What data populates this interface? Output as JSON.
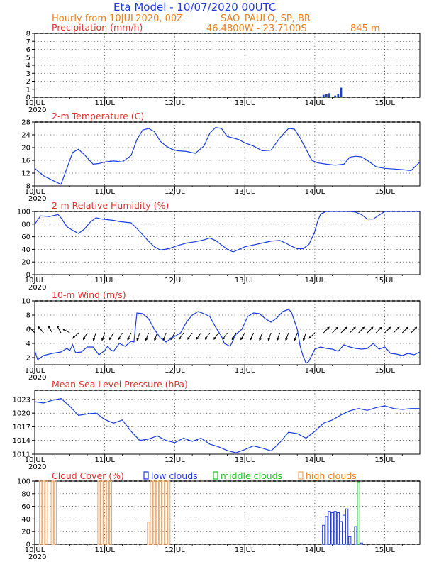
{
  "header": {
    "title": "Eta Model - 10/07/2020 00UTC",
    "line2_left": "Hourly from 10JUL2020, 00Z",
    "line2_right": "SAO_PAULO, SP, BR",
    "coords": "46.4800W - 23.7100S",
    "elevation": "845  m"
  },
  "colors": {
    "line": "#1a3be0",
    "wind_arrows": "#000000",
    "low_clouds": "#1f3bd6",
    "middle_clouds": "#22c122",
    "high_clouds": "#f4a460",
    "title_red": "#e0302c"
  },
  "x_axis": {
    "tick_labels": [
      "10JUL",
      "11JUL",
      "12JUL",
      "13JUL",
      "14JUL",
      "15JUL"
    ],
    "tick_hours": [
      0,
      24,
      48,
      72,
      96,
      120
    ],
    "year": "2020",
    "range_hours": [
      0,
      132
    ]
  },
  "panels": {
    "precip": {
      "title": "Precipitation (mm/h)"
    },
    "temp": {
      "title": "2-m Temperature (C)"
    },
    "rh": {
      "title": "2-m Relative Humidity (%)"
    },
    "wind": {
      "title": "10-m Wind (m/s)"
    },
    "mslp": {
      "title": "Mean Sea Level Pressure (hPa)"
    },
    "cloud": {
      "title": "Cloud Cover (%)",
      "legend_low": "low clouds",
      "legend_mid": "middle clouds",
      "legend_high": "high clouds"
    }
  },
  "chart_data": [
    {
      "id": "precip",
      "type": "bar",
      "title": "Precipitation (mm/h)",
      "ylim": [
        0,
        8
      ],
      "yticks": [
        0,
        1,
        2,
        3,
        4,
        5,
        6,
        7,
        8
      ],
      "x_hours": [
        98,
        99,
        100,
        101,
        102,
        103,
        104,
        105
      ],
      "values": [
        0.1,
        0.3,
        0.4,
        0.5,
        0.05,
        0.2,
        0.4,
        1.2
      ]
    },
    {
      "id": "temp",
      "type": "line",
      "title": "2-m Temperature (C)",
      "ylim": [
        8,
        28
      ],
      "yticks": [
        8,
        12,
        16,
        20,
        24,
        28
      ],
      "x_hours": [
        0,
        3,
        6,
        9,
        11,
        13,
        15,
        17,
        20,
        22,
        24,
        27,
        30,
        33,
        35,
        37,
        39,
        41,
        43,
        45,
        47,
        49,
        52,
        55,
        58,
        60,
        62,
        64,
        66,
        68,
        70,
        72,
        75,
        78,
        81,
        84,
        87,
        89,
        91,
        93,
        95,
        97,
        100,
        103,
        106,
        108,
        110,
        112,
        114,
        117,
        120,
        123,
        126,
        129,
        132
      ],
      "values": [
        13.5,
        11.2,
        9.8,
        8.5,
        13.5,
        18.5,
        19.5,
        17.8,
        14.8,
        15.0,
        15.5,
        15.8,
        15.5,
        17.5,
        22.5,
        25.5,
        26.0,
        25.0,
        22.0,
        20.5,
        19.5,
        19.0,
        18.8,
        18.2,
        20.5,
        24.5,
        26.3,
        26.0,
        23.5,
        23.0,
        22.5,
        21.5,
        20.5,
        19.0,
        19.2,
        23.0,
        26.0,
        25.8,
        23.0,
        19.5,
        16.0,
        15.2,
        14.8,
        14.5,
        14.8,
        17.0,
        17.3,
        17.1,
        16.0,
        14.0,
        13.5,
        13.3,
        13.1,
        12.8,
        15.5
      ]
    },
    {
      "id": "rh",
      "type": "line",
      "title": "2-m Relative Humidity (%)",
      "ylim": [
        0,
        100
      ],
      "yticks": [
        0,
        20,
        40,
        60,
        80,
        100
      ],
      "x_hours": [
        0,
        2,
        5,
        8,
        9,
        11,
        13,
        15,
        17,
        19,
        21,
        23,
        25,
        27,
        29,
        31,
        33,
        35,
        37,
        39,
        41,
        43,
        46,
        49,
        52,
        55,
        58,
        60,
        62,
        64,
        66,
        68,
        70,
        72,
        75,
        78,
        81,
        84,
        86,
        88,
        90,
        92,
        94,
        96,
        97,
        98,
        100,
        103,
        106,
        108,
        110,
        112,
        114,
        116,
        118,
        120,
        124,
        128,
        132
      ],
      "values": [
        80,
        93,
        92,
        95,
        90,
        76,
        70,
        65,
        72,
        83,
        90,
        88,
        87,
        86,
        84,
        83,
        82,
        73,
        63,
        53,
        44,
        39,
        41,
        46,
        50,
        52,
        55,
        58,
        54,
        47,
        40,
        36,
        40,
        44,
        47,
        50,
        53,
        54,
        50,
        45,
        41,
        41,
        48,
        68,
        85,
        96,
        100,
        100,
        100,
        100,
        99,
        95,
        88,
        88,
        94,
        100,
        100,
        100,
        100
      ]
    },
    {
      "id": "wind",
      "type": "line",
      "title": "10-m Wind (m/s)",
      "ylim": [
        1,
        10
      ],
      "yticks": [
        2,
        4,
        6,
        8,
        10
      ],
      "x_hours": [
        0,
        1,
        3,
        6,
        9,
        11,
        12,
        13,
        14,
        16,
        18,
        20,
        22,
        24,
        25,
        26,
        27,
        29,
        31,
        33,
        34,
        35,
        37,
        39,
        41,
        43,
        45,
        47,
        48,
        50,
        52,
        54,
        56,
        58,
        60,
        62,
        64,
        65,
        67,
        69,
        71,
        73,
        75,
        77,
        79,
        81,
        83,
        85,
        87,
        88,
        90,
        91,
        92,
        93,
        94,
        96,
        98,
        100,
        102,
        104,
        106,
        108,
        110,
        112,
        114,
        116,
        118,
        120,
        122,
        124,
        126,
        128,
        130,
        132
      ],
      "values": [
        3.0,
        1.7,
        2.3,
        2.6,
        2.8,
        3.3,
        3.0,
        3.8,
        2.7,
        2.8,
        3.5,
        3.5,
        2.4,
        3.0,
        3.6,
        3.1,
        2.9,
        4.0,
        3.6,
        4.3,
        4.2,
        8.3,
        8.2,
        7.5,
        6.0,
        4.8,
        4.2,
        4.8,
        5.0,
        5.5,
        7.0,
        8.0,
        8.5,
        8.2,
        7.8,
        6.3,
        5.0,
        4.0,
        3.6,
        5.3,
        6.0,
        7.8,
        8.3,
        8.2,
        7.5,
        7.0,
        7.6,
        8.5,
        8.8,
        8.4,
        6.0,
        3.6,
        2.2,
        1.2,
        1.5,
        3.2,
        3.5,
        3.3,
        3.2,
        2.9,
        3.8,
        3.5,
        3.3,
        3.2,
        3.3,
        4.0,
        3.2,
        3.5,
        2.6,
        2.5,
        2.3,
        2.6,
        2.4,
        2.8
      ],
      "arrows": {
        "x_hours": [
          0,
          3,
          6,
          9,
          12,
          15,
          18,
          21,
          24,
          27,
          30,
          33,
          36,
          39,
          42,
          45,
          48,
          51,
          54,
          57,
          60,
          63,
          66,
          69,
          72,
          75,
          78,
          81,
          84,
          87,
          90,
          93,
          96,
          99,
          102,
          105,
          108,
          111,
          114,
          117,
          120,
          123,
          126,
          129
        ],
        "direction_deg": [
          315,
          320,
          330,
          330,
          300,
          225,
          210,
          200,
          200,
          210,
          210,
          205,
          200,
          200,
          200,
          200,
          210,
          215,
          215,
          215,
          215,
          215,
          215,
          210,
          210,
          205,
          200,
          200,
          200,
          200,
          200,
          200,
          225,
          45,
          45,
          45,
          45,
          45,
          45,
          45,
          45,
          45,
          45,
          45
        ]
      }
    },
    {
      "id": "mslp",
      "type": "line",
      "title": "Mean Sea Level Pressure (hPa)",
      "ylim": [
        1011,
        1025
      ],
      "yticks": [
        1011,
        1014,
        1017,
        1020,
        1023
      ],
      "x_hours": [
        0,
        3,
        6,
        9,
        12,
        15,
        18,
        21,
        24,
        27,
        30,
        33,
        36,
        39,
        42,
        45,
        48,
        51,
        54,
        57,
        60,
        63,
        66,
        69,
        72,
        75,
        78,
        81,
        84,
        87,
        90,
        93,
        96,
        99,
        102,
        105,
        108,
        111,
        114,
        117,
        120,
        123,
        126,
        129,
        132
      ],
      "values": [
        1022.5,
        1022.2,
        1022.8,
        1023.2,
        1021.5,
        1019.5,
        1019.8,
        1020.0,
        1018.6,
        1017.8,
        1018.5,
        1016.0,
        1014.0,
        1014.3,
        1015.0,
        1014.0,
        1013.5,
        1014.5,
        1013.8,
        1014.5,
        1013.2,
        1012.6,
        1011.8,
        1011.3,
        1012.0,
        1012.8,
        1012.3,
        1011.7,
        1013.5,
        1015.8,
        1015.5,
        1014.5,
        1016.0,
        1017.8,
        1018.5,
        1019.6,
        1020.5,
        1021.0,
        1020.6,
        1021.2,
        1021.6,
        1021.0,
        1020.8,
        1021.0,
        1021.0
      ]
    },
    {
      "id": "cloud",
      "type": "bar",
      "title": "Cloud Cover (%)",
      "ylim": [
        0,
        100
      ],
      "yticks": [
        0,
        20,
        40,
        60,
        80,
        100
      ],
      "series": [
        {
          "name": "low clouds",
          "x_hours": [
            99,
            100,
            101,
            102,
            103,
            104,
            105,
            106,
            107,
            108,
            110,
            112
          ],
          "values": [
            30,
            44,
            52,
            50,
            52,
            50,
            36,
            46,
            56,
            12,
            28,
            2
          ]
        },
        {
          "name": "middle clouds",
          "x_hours": [
            111
          ],
          "values": [
            98
          ]
        },
        {
          "name": "high clouds",
          "x_hours": [
            2,
            3,
            4,
            6,
            7,
            22,
            23,
            24,
            25,
            26,
            39,
            40,
            41,
            42,
            43,
            44,
            45,
            46
          ],
          "values": [
            100,
            100,
            100,
            100,
            100,
            100,
            100,
            100,
            100,
            100,
            35,
            100,
            100,
            100,
            100,
            100,
            100,
            100
          ]
        }
      ]
    }
  ]
}
